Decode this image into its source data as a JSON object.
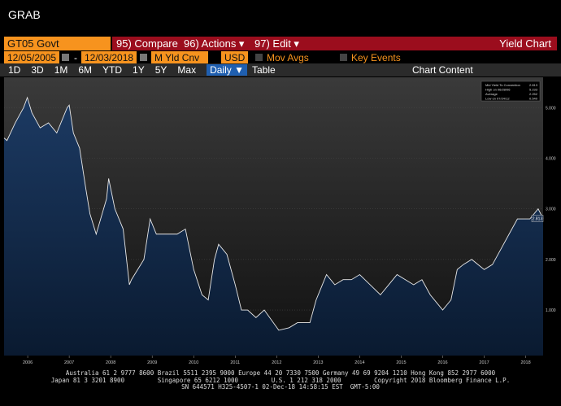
{
  "title": "GRAB",
  "toolbar": {
    "security": "GT05 Govt",
    "buttons": [
      "95) Compare",
      "96) Actions ▾",
      "97) Edit ▾"
    ],
    "page_name": "Yield Chart"
  },
  "settings": {
    "start_date": "12/05/2005",
    "separator": "-",
    "end_date": "12/03/2018",
    "field": "M Yld Cnv",
    "currency": "USD",
    "mov_avgs": "Mov Avgs",
    "key_events": "Key Events"
  },
  "periods": [
    "1D",
    "3D",
    "1M",
    "6M",
    "YTD",
    "1Y",
    "5Y",
    "Max",
    "Daily ▼"
  ],
  "views": {
    "table": "Table",
    "chart_content": "Chart Content"
  },
  "chart_data": {
    "type": "line",
    "x": [
      2005.93,
      2006.0,
      2006.2,
      2006.4,
      2006.49,
      2006.6,
      2006.8,
      2007.0,
      2007.2,
      2007.45,
      2007.5,
      2007.6,
      2007.75,
      2007.9,
      2008.0,
      2008.15,
      2008.4,
      2008.45,
      2008.6,
      2008.8,
      2008.95,
      2009.0,
      2009.3,
      2009.45,
      2009.6,
      2009.9,
      2010.1,
      2010.3,
      2010.5,
      2010.7,
      2010.85,
      2011.0,
      2011.1,
      2011.3,
      2011.5,
      2011.65,
      2011.8,
      2012.0,
      2012.2,
      2012.55,
      2012.8,
      2013.0,
      2013.3,
      2013.45,
      2013.55,
      2013.7,
      2013.9,
      2014.1,
      2014.3,
      2014.5,
      2014.75,
      2015.0,
      2015.2,
      2015.4,
      2015.6,
      2015.8,
      2016.0,
      2016.2,
      2016.4,
      2016.5,
      2016.7,
      2016.85,
      2017.0,
      2017.2,
      2017.5,
      2017.7,
      2017.9,
      2018.1,
      2018.3,
      2018.6,
      2018.8,
      2018.92
    ],
    "series": [
      {
        "name": "Mid Yield To Convention",
        "color": "#e8e8e8",
        "fill": "#12294a",
        "values": [
          4.4,
          4.35,
          4.7,
          5.0,
          5.2,
          4.9,
          4.6,
          4.7,
          4.5,
          5.0,
          5.05,
          4.5,
          4.2,
          3.4,
          2.9,
          2.5,
          3.2,
          3.6,
          3.0,
          2.6,
          1.5,
          1.6,
          2.0,
          2.8,
          2.5,
          2.5,
          2.5,
          2.6,
          1.8,
          1.3,
          1.2,
          2.0,
          2.3,
          2.1,
          1.5,
          1.0,
          1.0,
          0.85,
          1.0,
          0.6,
          0.65,
          0.75,
          0.75,
          1.2,
          1.4,
          1.7,
          1.5,
          1.6,
          1.6,
          1.7,
          1.5,
          1.3,
          1.5,
          1.7,
          1.6,
          1.5,
          1.6,
          1.3,
          1.1,
          1.0,
          1.2,
          1.8,
          1.9,
          2.0,
          1.8,
          1.9,
          2.2,
          2.5,
          2.8,
          2.8,
          3.0,
          2.81
        ]
      }
    ],
    "legend_stats": [
      {
        "label": "Mid Yield To Convention",
        "value": "2.813"
      },
      {
        "label": "High on 06/28/06",
        "value": "5.233"
      },
      {
        "label": "Average",
        "value": "2.252"
      },
      {
        "label": "Low on 07/24/12",
        "value": "0.540"
      }
    ],
    "xlim": [
      2005.93,
      2018.92
    ],
    "ylim": [
      0.1,
      5.6
    ],
    "xticks": [
      {
        "value": 2006.5,
        "label": "2006"
      },
      {
        "value": 2007.5,
        "label": "2007"
      },
      {
        "value": 2008.5,
        "label": "2008"
      },
      {
        "value": 2009.5,
        "label": "2009"
      },
      {
        "value": 2010.5,
        "label": "2010"
      },
      {
        "value": 2011.5,
        "label": "2011"
      },
      {
        "value": 2012.5,
        "label": "2012"
      },
      {
        "value": 2013.5,
        "label": "2013"
      },
      {
        "value": 2014.5,
        "label": "2014"
      },
      {
        "value": 2015.5,
        "label": "2015"
      },
      {
        "value": 2016.5,
        "label": "2016"
      },
      {
        "value": 2017.5,
        "label": "2017"
      },
      {
        "value": 2018.5,
        "label": "2018"
      }
    ],
    "yticks": [
      {
        "value": 1,
        "label": "1.000"
      },
      {
        "value": 2,
        "label": "2.000"
      },
      {
        "value": 3,
        "label": "3.000"
      },
      {
        "value": 4,
        "label": "4.000"
      },
      {
        "value": 5,
        "label": "5.000"
      }
    ]
  },
  "footer": [
    "Australia 61 2 9777 8600 Brazil 5511 2395 9000 Europe 44 20 7330 7500 Germany 49 69 9204 1210 Hong Kong 852 2977 6000",
    "Japan 81 3 3201 8900         Singapore 65 6212 1000         U.S. 1 212 318 2000         Copyright 2018 Bloomberg Finance L.P.",
    "SN 644571 H325-4507-1 02-Dec-18 14:58:15 EST  GMT-5:00"
  ]
}
